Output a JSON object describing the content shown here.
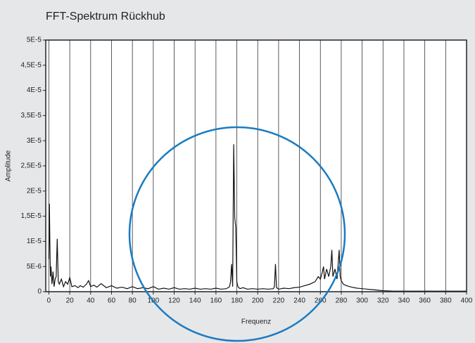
{
  "chart_data": {
    "type": "line",
    "title": "FFT-Spektrum Rückhub",
    "xlabel": "Frequenz",
    "ylabel": "Amplitude",
    "xlim": [
      -3,
      400
    ],
    "ylim": [
      0,
      5e-05
    ],
    "xticks": [
      0,
      20,
      40,
      60,
      80,
      100,
      120,
      140,
      160,
      180,
      200,
      220,
      240,
      260,
      280,
      300,
      320,
      340,
      360,
      380,
      400
    ],
    "yticks": [
      0,
      {
        "value": 5e-06,
        "label": "5E-6"
      },
      {
        "value": 1e-05,
        "label": "1E-5"
      },
      {
        "value": 1.5e-05,
        "label": "1,5E-5"
      },
      {
        "value": 2e-05,
        "label": "2E-5"
      },
      {
        "value": 2.5e-05,
        "label": "2,5E-5"
      },
      {
        "value": 3e-05,
        "label": "3E-5"
      },
      {
        "value": 3.5e-05,
        "label": "3,5E-5"
      },
      {
        "value": 4e-05,
        "label": "4E-5"
      },
      {
        "value": 4.5e-05,
        "label": "4,5E-5"
      },
      {
        "value": 5e-05,
        "label": "5E-5"
      }
    ],
    "grid": true,
    "series": [
      {
        "color": "#111111",
        "x": [
          0,
          0.5,
          1,
          1.5,
          2,
          3,
          4,
          5,
          6,
          7,
          8,
          9,
          10,
          12,
          14,
          16,
          18,
          20,
          22,
          25,
          28,
          30,
          33,
          36,
          38,
          40,
          43,
          46,
          50,
          55,
          60,
          65,
          70,
          75,
          80,
          85,
          90,
          95,
          100,
          105,
          110,
          115,
          120,
          125,
          130,
          135,
          140,
          145,
          150,
          155,
          160,
          165,
          170,
          173,
          174,
          175,
          176,
          177,
          178,
          179,
          180,
          181,
          183,
          186,
          190,
          195,
          200,
          205,
          210,
          215,
          216,
          217,
          218,
          220,
          225,
          230,
          235,
          240,
          245,
          250,
          255,
          258,
          260,
          262,
          263,
          264,
          266,
          268,
          270,
          271,
          272,
          274,
          276,
          278,
          279,
          280,
          282,
          285,
          290,
          295,
          300,
          305,
          310,
          315,
          320,
          330,
          340,
          350,
          360,
          370,
          380,
          390,
          400
        ],
        "values": [
          6.5e-06,
          1.75e-05,
          9e-06,
          3e-06,
          5e-06,
          1.5e-06,
          4e-06,
          1e-06,
          2.5e-06,
          3e-06,
          1.05e-05,
          2e-06,
          1.5e-06,
          2.5e-06,
          1e-06,
          2e-06,
          1.5e-06,
          2.8e-06,
          1e-06,
          1.2e-06,
          8e-07,
          1.2e-06,
          9e-07,
          1.5e-06,
          2.2e-06,
          1e-06,
          1.3e-06,
          9e-07,
          1.6e-06,
          8e-07,
          1.2e-06,
          7e-07,
          9e-07,
          6e-07,
          1e-06,
          6e-07,
          8e-07,
          6e-07,
          1e-06,
          5e-07,
          7e-07,
          5e-07,
          8e-07,
          5e-07,
          6e-07,
          5e-07,
          7e-07,
          5e-07,
          6e-07,
          5e-07,
          7e-07,
          5e-07,
          6e-07,
          1e-06,
          2e-06,
          5.5e-06,
          1e-06,
          2.93e-05,
          1.47e-05,
          1.27e-05,
          2e-06,
          1e-06,
          6e-07,
          8e-07,
          5e-07,
          6e-07,
          5e-07,
          6e-07,
          5e-07,
          6e-07,
          1e-06,
          5.5e-06,
          8e-07,
          5e-07,
          7e-07,
          6e-07,
          8e-07,
          9e-07,
          1.2e-06,
          1.5e-06,
          2e-06,
          3e-06,
          2.5e-06,
          4e-06,
          5e-06,
          2.5e-06,
          4.5e-06,
          3e-06,
          5e-06,
          8.3e-06,
          3e-06,
          4.5e-06,
          2.5e-06,
          8.3e-06,
          3e-06,
          2.2e-06,
          1.5e-06,
          1.2e-06,
          9e-07,
          7e-07,
          6e-07,
          5e-07,
          4e-07,
          3e-07,
          2e-07,
          1e-07,
          1e-07,
          1e-07,
          1e-07,
          1e-07,
          1e-07,
          1e-07,
          1e-07
        ]
      }
    ]
  }
}
